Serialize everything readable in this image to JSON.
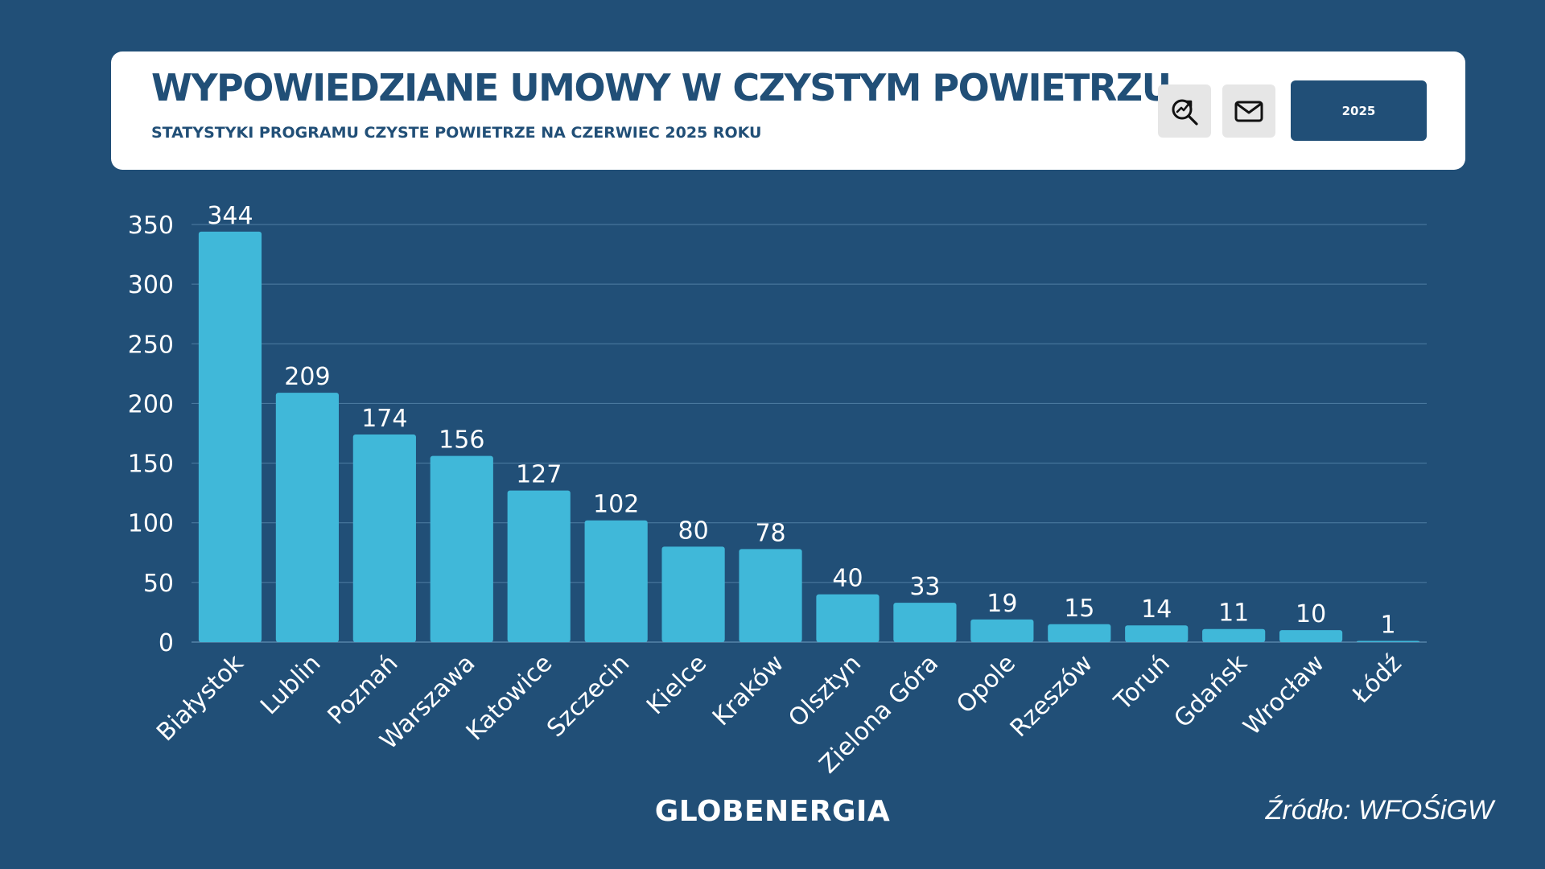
{
  "header": {
    "title": "WYPOWIEDZIANE UMOWY W CZYSTYM POWIETRZU",
    "subtitle": "STATYSTYKI PROGRAMU CZYSTE POWIETRZE NA CZERWIEC 2025 ROKU",
    "year_label": "2025",
    "search_icon": "search-chart-icon",
    "mail_icon": "mail-icon"
  },
  "colors": {
    "background": "#214f77",
    "bar": "#40b8d9",
    "card": "#ffffff",
    "text_dark": "#214f77",
    "grid": "#4f7ea3"
  },
  "chart_data": {
    "type": "bar",
    "categories": [
      "Białystok",
      "Lublin",
      "Poznań",
      "Warszawa",
      "Katowice",
      "Szczecin",
      "Kielce",
      "Kraków",
      "Olsztyn",
      "Zielona Góra",
      "Opole",
      "Rzeszów",
      "Toruń",
      "Gdańsk",
      "Wrocław",
      "Łódź"
    ],
    "values": [
      344,
      209,
      174,
      156,
      127,
      102,
      80,
      78,
      40,
      33,
      19,
      15,
      14,
      11,
      10,
      1
    ],
    "ylim": [
      0,
      350
    ],
    "yticks": [
      0,
      50,
      100,
      150,
      200,
      250,
      300,
      350
    ],
    "grid": true,
    "data_labels": true
  },
  "footer": {
    "brand": "GLOBENERGIA",
    "source": "Źródło: WFOŚiGW"
  }
}
